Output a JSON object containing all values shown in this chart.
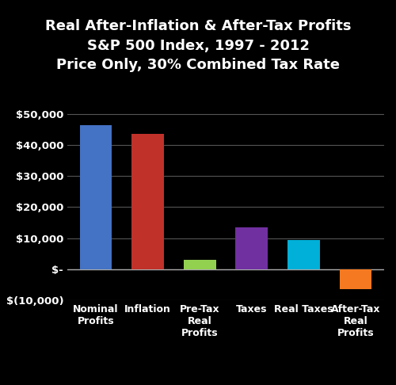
{
  "title_line1": "Real After-Inflation & After-Tax Profits",
  "title_line2": "S&P 500 Index, 1997 - 2012",
  "title_line3": "Price Only, 30% Combined Tax Rate",
  "categories": [
    "Nominal\nProfits",
    "Inflation",
    "Pre-Tax\nReal\nProfits",
    "Taxes",
    "Real Taxes",
    "After-Tax\nReal\nProfits"
  ],
  "values": [
    46500,
    43500,
    3000,
    13500,
    9500,
    -6500
  ],
  "bar_colors": [
    "#4472C4",
    "#C0312A",
    "#92D050",
    "#7030A0",
    "#00B0D8",
    "#F47920"
  ],
  "background_color": "#000000",
  "text_color": "#ffffff",
  "ylim": [
    -10000,
    52000
  ],
  "yticks": [
    -10000,
    0,
    10000,
    20000,
    30000,
    40000,
    50000
  ],
  "ytick_labels": [
    "$(10,000)",
    "$-",
    "$10,000",
    "$20,000",
    "$30,000",
    "$40,000",
    "$50,000"
  ],
  "title_fontsize": 13.0,
  "tick_fontsize": 9.5,
  "label_fontsize": 9.0,
  "bar_width": 0.62,
  "grid_color": "#555555",
  "zero_line_color": "#aaaaaa"
}
